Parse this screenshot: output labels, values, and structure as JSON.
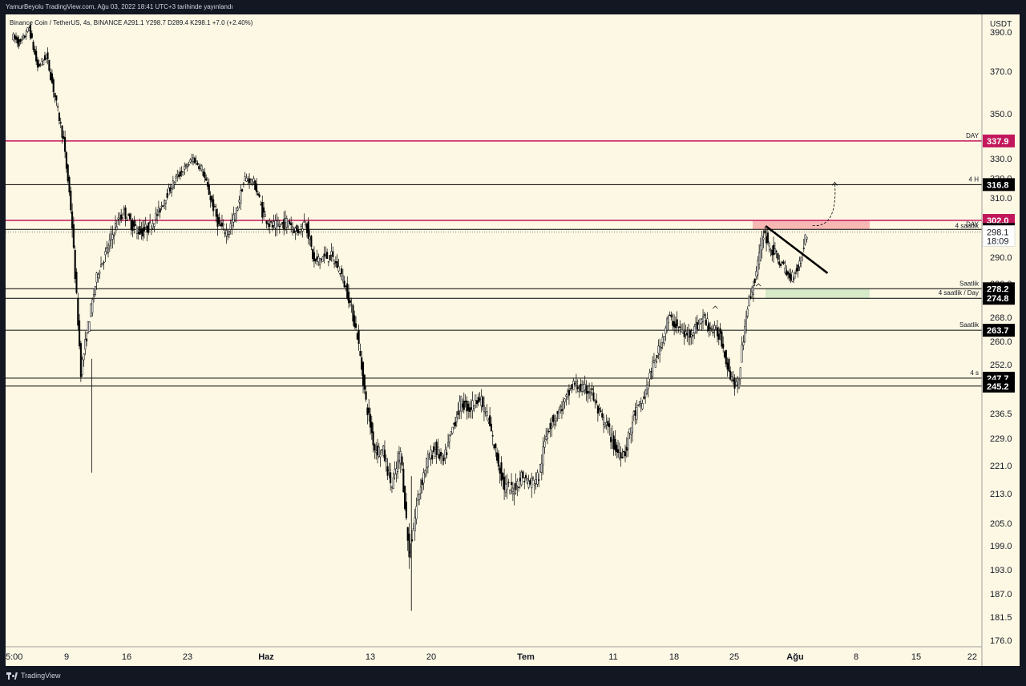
{
  "header": {
    "caption": "YamurBeyolu TradingView.com, Ağu 03, 2022 18:41 UTC+3 tarihinde yayınlandı"
  },
  "footer": {
    "brand": "TradingView"
  },
  "chart_data": {
    "type": "candlestick",
    "symbol_line": "Binance Coin / TetherUS, 4s, BINANCE  A291.1  Y298.7  D289.4  K298.1  +7.0 (+2.40%)",
    "currency": "USDT",
    "y_ticks": [
      "390.0",
      "370.0",
      "350.0",
      "330.0",
      "320.0",
      "310.0",
      "290.0",
      "280.0",
      "268.0",
      "260.0",
      "252.0",
      "236.5",
      "229.0",
      "221.0",
      "213.0",
      "205.0",
      "199.0",
      "193.0",
      "187.0",
      "181.5",
      "176.0"
    ],
    "x_ticks": [
      "5:00",
      "9",
      "16",
      "23",
      "Haz",
      "13",
      "20",
      "Tem",
      "11",
      "18",
      "25",
      "Ağu",
      "8",
      "15",
      "22"
    ],
    "horizontal_levels": [
      {
        "price": 337.9,
        "label": "337.9",
        "note": "DAY",
        "color": "#c2185b",
        "style": "pink"
      },
      {
        "price": 316.8,
        "label": "316.8",
        "note": "4 H",
        "color": "#000000",
        "style": "black"
      },
      {
        "price": 302.0,
        "label": "302.0",
        "note": "",
        "color": "#c2185b",
        "style": "pink"
      },
      {
        "price": 298.9,
        "label": "298.9",
        "note": "DAY",
        "color": "#000000",
        "style": "black"
      },
      {
        "price": 278.2,
        "label": "278.2",
        "note": "Saatlik",
        "color": "#000000",
        "style": "black"
      },
      {
        "price": 274.8,
        "label": "274.8",
        "note": "4 saatlik / Day",
        "color": "#000000",
        "style": "black"
      },
      {
        "price": 263.7,
        "label": "263.7",
        "note": "Saatlik",
        "color": "#000000",
        "style": "black"
      },
      {
        "price": 247.7,
        "label": "247.7",
        "note": "4 s",
        "color": "#000000",
        "style": "black"
      },
      {
        "price": 245.2,
        "label": "245.2",
        "note": "",
        "color": "#000000",
        "style": "black"
      }
    ],
    "current_price": {
      "price": 298.1,
      "label": "298.1",
      "countdown": "18:09",
      "note": "4 saatlik"
    },
    "zones": [
      {
        "name": "resistance",
        "top": 302.0,
        "bottom": 298.9,
        "color": "#f4a3a3"
      },
      {
        "name": "support",
        "top": 278.2,
        "bottom": 274.8,
        "color": "#c8e6c0"
      }
    ],
    "price_path": [
      [
        "2022-05-03",
        388
      ],
      [
        "2022-05-04",
        384
      ],
      [
        "2022-05-05",
        392
      ],
      [
        "2022-05-06",
        372
      ],
      [
        "2022-05-07",
        378
      ],
      [
        "2022-05-08",
        358
      ],
      [
        "2022-05-09",
        338
      ],
      [
        "2022-05-10",
        300
      ],
      [
        "2022-05-11",
        250
      ],
      [
        "2022-05-12",
        268
      ],
      [
        "2022-05-13",
        285
      ],
      [
        "2022-05-14",
        292
      ],
      [
        "2022-05-15",
        300
      ],
      [
        "2022-05-16",
        305
      ],
      [
        "2022-05-17",
        300
      ],
      [
        "2022-05-18",
        298
      ],
      [
        "2022-05-19",
        300
      ],
      [
        "2022-05-20",
        305
      ],
      [
        "2022-05-21",
        312
      ],
      [
        "2022-05-22",
        320
      ],
      [
        "2022-05-23",
        325
      ],
      [
        "2022-05-24",
        330
      ],
      [
        "2022-05-25",
        325
      ],
      [
        "2022-05-26",
        310
      ],
      [
        "2022-05-27",
        300
      ],
      [
        "2022-05-28",
        298
      ],
      [
        "2022-05-29",
        305
      ],
      [
        "2022-05-30",
        320
      ],
      [
        "2022-05-31",
        318
      ],
      [
        "2022-06-01",
        305
      ],
      [
        "2022-06-02",
        300
      ],
      [
        "2022-06-03",
        300
      ],
      [
        "2022-06-04",
        302
      ],
      [
        "2022-06-05",
        298
      ],
      [
        "2022-06-06",
        302
      ],
      [
        "2022-06-07",
        288
      ],
      [
        "2022-06-08",
        290
      ],
      [
        "2022-06-09",
        290
      ],
      [
        "2022-06-10",
        285
      ],
      [
        "2022-06-11",
        275
      ],
      [
        "2022-06-12",
        262
      ],
      [
        "2022-06-13",
        240
      ],
      [
        "2022-06-14",
        226
      ],
      [
        "2022-06-15",
        225
      ],
      [
        "2022-06-16",
        215
      ],
      [
        "2022-06-17",
        225
      ],
      [
        "2022-06-18",
        196
      ],
      [
        "2022-06-19",
        212
      ],
      [
        "2022-06-20",
        222
      ],
      [
        "2022-06-21",
        226
      ],
      [
        "2022-06-22",
        222
      ],
      [
        "2022-06-23",
        232
      ],
      [
        "2022-06-24",
        240
      ],
      [
        "2022-06-25",
        238
      ],
      [
        "2022-06-26",
        242
      ],
      [
        "2022-06-27",
        236
      ],
      [
        "2022-06-28",
        225
      ],
      [
        "2022-06-29",
        215
      ],
      [
        "2022-06-30",
        214
      ],
      [
        "2022-07-01",
        218
      ],
      [
        "2022-07-02",
        216
      ],
      [
        "2022-07-03",
        218
      ],
      [
        "2022-07-04",
        232
      ],
      [
        "2022-07-05",
        236
      ],
      [
        "2022-07-06",
        240
      ],
      [
        "2022-07-07",
        246
      ],
      [
        "2022-07-08",
        244
      ],
      [
        "2022-07-09",
        244
      ],
      [
        "2022-07-10",
        236
      ],
      [
        "2022-07-11",
        232
      ],
      [
        "2022-07-12",
        225
      ],
      [
        "2022-07-13",
        225
      ],
      [
        "2022-07-14",
        236
      ],
      [
        "2022-07-15",
        240
      ],
      [
        "2022-07-16",
        250
      ],
      [
        "2022-07-17",
        258
      ],
      [
        "2022-07-18",
        268
      ],
      [
        "2022-07-19",
        265
      ],
      [
        "2022-07-20",
        262
      ],
      [
        "2022-07-21",
        264
      ],
      [
        "2022-07-22",
        268
      ],
      [
        "2022-07-23",
        264
      ],
      [
        "2022-07-24",
        262
      ],
      [
        "2022-07-25",
        250
      ],
      [
        "2022-07-26",
        244
      ],
      [
        "2022-07-27",
        270
      ],
      [
        "2022-07-28",
        282
      ],
      [
        "2022-07-29",
        298
      ],
      [
        "2022-07-30",
        292
      ],
      [
        "2022-07-31",
        288
      ],
      [
        "2022-08-01",
        282
      ],
      [
        "2022-08-02",
        286
      ],
      [
        "2022-08-03",
        298.1
      ]
    ],
    "wicks": [
      [
        "2022-05-12",
        219
      ],
      [
        "2022-06-18",
        183
      ]
    ],
    "trendline": {
      "from": [
        "2022-07-29",
        300
      ],
      "to": [
        "2022-08-05",
        284
      ],
      "color": "#000000"
    },
    "projection_arrow": {
      "from": [
        "2022-08-04",
        301
      ],
      "to": [
        "2022-08-06",
        318
      ]
    },
    "caret_markers": [
      [
        "2022-07-23",
        272
      ],
      [
        "2022-07-28",
        280
      ]
    ]
  }
}
